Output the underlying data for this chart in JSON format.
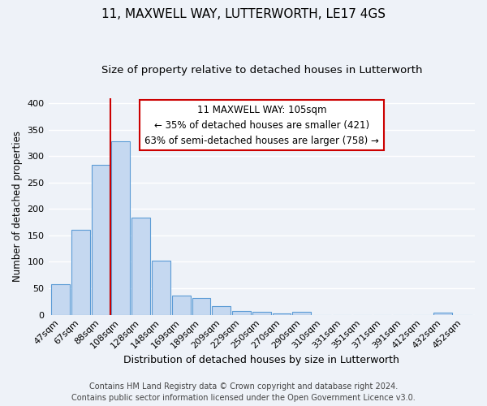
{
  "title": "11, MAXWELL WAY, LUTTERWORTH, LE17 4GS",
  "subtitle": "Size of property relative to detached houses in Lutterworth",
  "xlabel": "Distribution of detached houses by size in Lutterworth",
  "ylabel": "Number of detached properties",
  "bar_labels": [
    "47sqm",
    "67sqm",
    "88sqm",
    "108sqm",
    "128sqm",
    "148sqm",
    "169sqm",
    "189sqm",
    "209sqm",
    "229sqm",
    "250sqm",
    "270sqm",
    "290sqm",
    "310sqm",
    "331sqm",
    "351sqm",
    "371sqm",
    "391sqm",
    "412sqm",
    "432sqm",
    "452sqm"
  ],
  "bar_values": [
    57,
    160,
    284,
    328,
    184,
    103,
    37,
    31,
    17,
    7,
    5,
    3,
    5,
    0,
    0,
    0,
    0,
    0,
    0,
    4,
    0
  ],
  "bar_color": "#c5d8f0",
  "bar_edge_color": "#5b9bd5",
  "vline_x": 2.5,
  "vline_color": "#cc0000",
  "ylim": [
    0,
    410
  ],
  "yticks": [
    0,
    50,
    100,
    150,
    200,
    250,
    300,
    350,
    400
  ],
  "annotation_title": "11 MAXWELL WAY: 105sqm",
  "annotation_line1": "← 35% of detached houses are smaller (421)",
  "annotation_line2": "63% of semi-detached houses are larger (758) →",
  "annotation_box_facecolor": "#ffffff",
  "annotation_box_edgecolor": "#cc0000",
  "footer_line1": "Contains HM Land Registry data © Crown copyright and database right 2024.",
  "footer_line2": "Contains public sector information licensed under the Open Government Licence v3.0.",
  "background_color": "#eef2f8",
  "grid_color": "#ffffff",
  "title_fontsize": 11,
  "subtitle_fontsize": 9.5,
  "xlabel_fontsize": 9,
  "ylabel_fontsize": 8.5,
  "tick_fontsize": 8,
  "footer_fontsize": 7,
  "annotation_fontsize": 8.5
}
